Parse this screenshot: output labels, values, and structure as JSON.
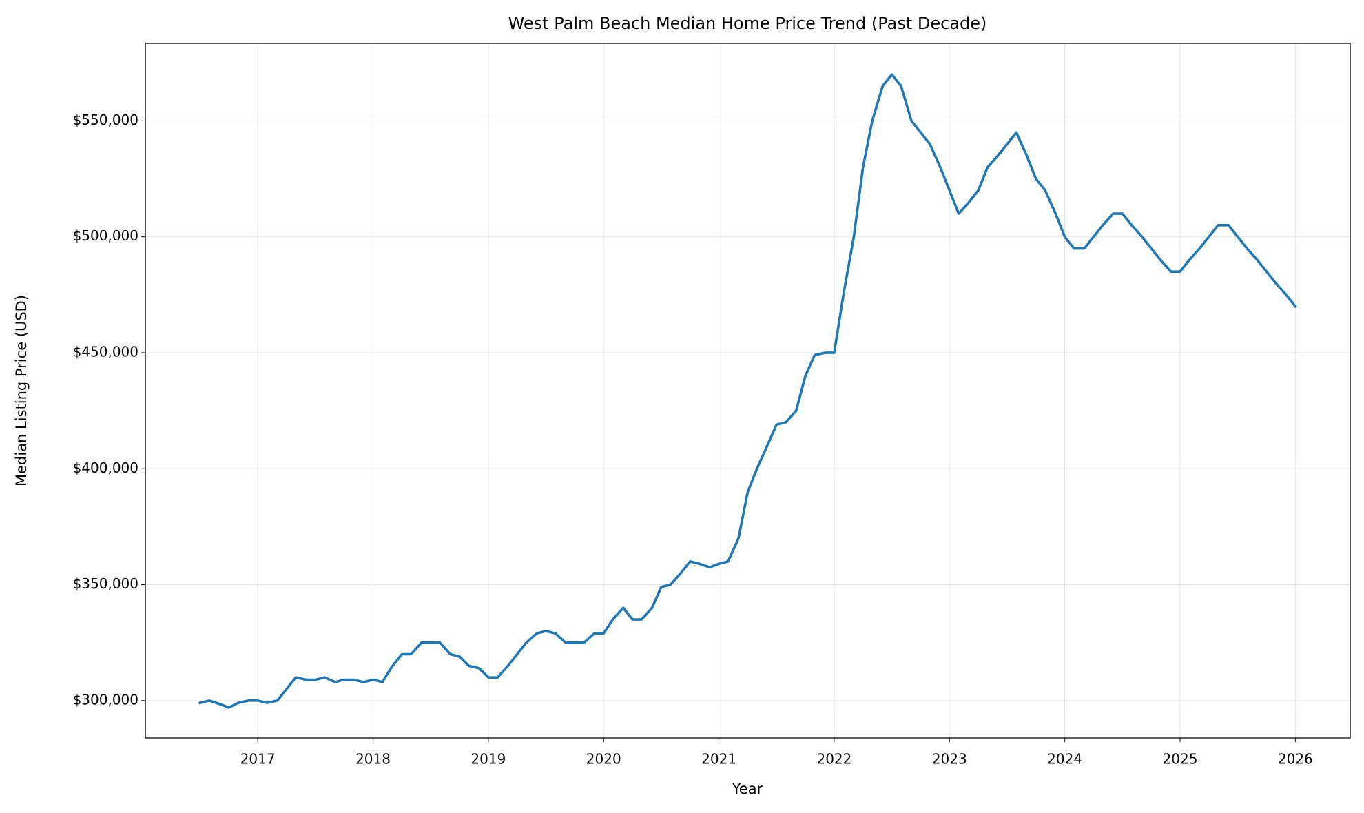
{
  "chart_data": {
    "type": "line",
    "title": "West Palm Beach Median Home Price Trend (Past Decade)",
    "x_label": "Year",
    "y_label": "Median Listing Price (USD)",
    "x": [
      2016.5,
      2016.58,
      2016.67,
      2016.75,
      2016.83,
      2016.92,
      2017,
      2017.08,
      2017.17,
      2017.25,
      2017.33,
      2017.42,
      2017.5,
      2017.58,
      2017.67,
      2017.75,
      2017.83,
      2017.92,
      2018,
      2018.08,
      2018.17,
      2018.25,
      2018.33,
      2018.42,
      2018.5,
      2018.58,
      2018.67,
      2018.75,
      2018.83,
      2018.92,
      2019,
      2019.08,
      2019.17,
      2019.25,
      2019.33,
      2019.42,
      2019.5,
      2019.58,
      2019.67,
      2019.75,
      2019.83,
      2019.92,
      2020,
      2020.08,
      2020.17,
      2020.25,
      2020.33,
      2020.42,
      2020.5,
      2020.58,
      2020.67,
      2020.75,
      2020.83,
      2020.92,
      2021,
      2021.08,
      2021.17,
      2021.25,
      2021.33,
      2021.42,
      2021.5,
      2021.58,
      2021.67,
      2021.75,
      2021.83,
      2021.92,
      2022,
      2022.08,
      2022.17,
      2022.25,
      2022.33,
      2022.42,
      2022.5,
      2022.58,
      2022.67,
      2022.75,
      2022.83,
      2022.92,
      2023,
      2023.08,
      2023.17,
      2023.25,
      2023.33,
      2023.42,
      2023.5,
      2023.58,
      2023.67,
      2023.75,
      2023.83,
      2023.92,
      2024,
      2024.08,
      2024.17,
      2024.25,
      2024.33,
      2024.42,
      2024.5,
      2024.58,
      2024.67,
      2024.75,
      2024.83,
      2024.92,
      2025,
      2025.08,
      2025.17,
      2025.25,
      2025.33,
      2025.42,
      2025.5,
      2025.58,
      2025.67,
      2025.75,
      2025.83,
      2025.92,
      2026
    ],
    "series": [
      {
        "name": "Median Listing Price",
        "color": "#1f77b4",
        "values": [
          299000,
          300000,
          298500,
          297000,
          299000,
          300000,
          300000,
          299000,
          300000,
          305000,
          310000,
          309000,
          309000,
          310000,
          308000,
          309000,
          309000,
          308000,
          309000,
          308000,
          315000,
          320000,
          320000,
          325000,
          325000,
          325000,
          320000,
          319000,
          315000,
          314000,
          310000,
          310000,
          315000,
          320000,
          325000,
          329000,
          330000,
          329000,
          325000,
          325000,
          325000,
          329000,
          329000,
          335000,
          340000,
          335000,
          335000,
          340000,
          349000,
          350000,
          355000,
          360000,
          359000,
          357500,
          359000,
          360000,
          370000,
          390000,
          400000,
          410000,
          419000,
          420000,
          425000,
          440000,
          449000,
          450000,
          450000,
          475000,
          500000,
          530000,
          550000,
          565000,
          570000,
          565000,
          550000,
          545000,
          540000,
          530000,
          520000,
          510000,
          515000,
          520000,
          530000,
          535000,
          540000,
          545000,
          535000,
          525000,
          520000,
          510000,
          500000,
          495000,
          495000,
          500000,
          505000,
          510000,
          510000,
          505000,
          500000,
          495000,
          490000,
          485000,
          485000,
          490000,
          495000,
          500000,
          505000,
          505000,
          500000,
          495000,
          490000,
          485000,
          480000,
          475000,
          470000
        ]
      }
    ],
    "xlim": [
      2016.025,
      2026.476
    ],
    "xticks": [
      2017,
      2018,
      2019,
      2020,
      2021,
      2022,
      2023,
      2024,
      2025,
      2026
    ],
    "ylim": [
      283900,
      583400
    ],
    "yticks": [
      {
        "value": 300000,
        "label": "$300,000"
      },
      {
        "value": 350000,
        "label": "$350,000"
      },
      {
        "value": 400000,
        "label": "$400,000"
      },
      {
        "value": 450000,
        "label": "$450,000"
      },
      {
        "value": 500000,
        "label": "$500,000"
      },
      {
        "value": 550000,
        "label": "$550,000"
      }
    ],
    "grid": true
  }
}
